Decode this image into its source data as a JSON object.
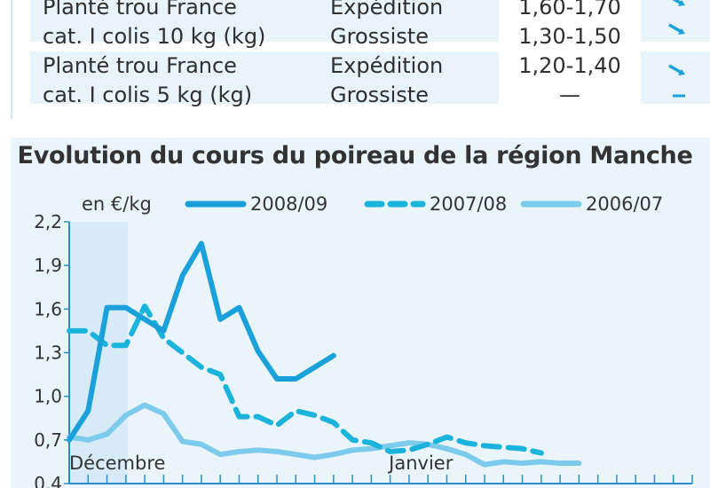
{
  "table": {
    "rows": [
      {
        "product_lines": [
          "Planté trou France",
          "cat. I colis 10 kg (kg)"
        ],
        "stages": [
          "Expédition",
          "Grossiste"
        ],
        "prices": [
          "1,60-1,70",
          "1,30-1,50"
        ],
        "trends": [
          "down",
          "down"
        ]
      },
      {
        "product_lines": [
          "Planté trou France",
          "cat. I colis 5 kg (kg)"
        ],
        "stages": [
          "Expédition",
          "Grossiste"
        ],
        "prices": [
          "1,20-1,40",
          "—"
        ],
        "trends": [
          "down",
          "stable"
        ]
      }
    ]
  },
  "colors": {
    "panel_bg": "#eaf4fb",
    "highlight_band": "#d6eaf7",
    "series_2008": "#1aa1dc",
    "series_2007": "#1ab3dc",
    "series_2006": "#7ccaec",
    "text": "#333333"
  },
  "chart_data": {
    "type": "line",
    "title": "Evolution du cours du poireau de la région Manche",
    "ylabel": "en €/kg",
    "ylim": [
      0.4,
      2.2
    ],
    "yticks": [
      "0,4",
      "0,7",
      "1,0",
      "1,3",
      "1,6",
      "1,9",
      "2,2"
    ],
    "ytick_values": [
      0.4,
      0.7,
      1.0,
      1.3,
      1.6,
      1.9,
      2.2
    ],
    "x_labels": [
      {
        "label": "Décembre",
        "index": 0
      },
      {
        "label": "Janvier",
        "index": 19
      }
    ],
    "n_points": 34,
    "grid": false,
    "legend_position": "top",
    "series": [
      {
        "name": "2008/09",
        "style": "solid-thick",
        "values": [
          0.7,
          0.9,
          1.61,
          1.61,
          1.53,
          1.45,
          1.83,
          2.05,
          1.53,
          1.61,
          1.31,
          1.12,
          1.12,
          1.2,
          1.28
        ]
      },
      {
        "name": "2007/08",
        "style": "dashed",
        "values": [
          1.45,
          1.45,
          1.35,
          1.35,
          1.62,
          1.4,
          1.3,
          1.2,
          1.15,
          0.86,
          0.86,
          0.8,
          0.9,
          0.87,
          0.82,
          0.7,
          0.68,
          0.62,
          0.63,
          0.67,
          0.72,
          0.68,
          0.66,
          0.65,
          0.64,
          0.61
        ]
      },
      {
        "name": "2006/07",
        "style": "solid",
        "values": [
          0.72,
          0.7,
          0.74,
          0.87,
          0.94,
          0.88,
          0.69,
          0.67,
          0.6,
          0.62,
          0.63,
          0.62,
          0.6,
          0.58,
          0.6,
          0.63,
          0.64,
          0.66,
          0.68,
          0.67,
          0.64,
          0.6,
          0.53,
          0.55,
          0.54,
          0.55,
          0.54,
          0.54
        ]
      }
    ]
  }
}
